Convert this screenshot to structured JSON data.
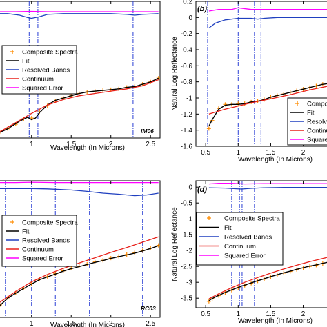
{
  "chart_data": [
    {
      "type": "line",
      "panel_label": "",
      "tag": "IM06",
      "xlabel": "Wavelength (In Microns)",
      "ylabel": "",
      "xlim": [
        0.55,
        2.62
      ],
      "ylim": [
        -1.5,
        0.28
      ],
      "xticks": [
        1,
        1.5,
        2,
        2.5
      ],
      "xtick_labels": [
        "1",
        "1.5",
        "2",
        "2.5"
      ],
      "yticks": [],
      "ytick_labels": [],
      "legend": {
        "position": "left-middle",
        "entries": [
          "Composite Spectra",
          "Fit",
          "Resolved Bands",
          "Continuum",
          "Squared Error"
        ]
      },
      "band_centers": [
        0.97,
        1.08,
        2.28
      ],
      "series": [
        {
          "name": "Composite Spectra",
          "color": "#ff8c00",
          "marker": "+",
          "x": [
            0.6,
            0.7,
            0.8,
            0.9,
            1.0,
            1.1,
            1.2,
            1.3,
            1.4,
            1.5,
            1.6,
            1.7,
            1.8,
            1.9,
            2.0,
            2.1,
            2.2,
            2.3,
            2.4,
            2.5,
            2.6
          ],
          "y": [
            -1.42,
            -1.38,
            -1.32,
            -1.25,
            -1.24,
            -1.16,
            -1.08,
            -1.02,
            -0.98,
            -0.95,
            -0.92,
            -0.9,
            -0.89,
            -0.88,
            -0.87,
            -0.86,
            -0.84,
            -0.83,
            -0.8,
            -0.77,
            -0.72
          ]
        },
        {
          "name": "Fit",
          "color": "#000000",
          "x": [
            0.55,
            0.7,
            0.85,
            0.95,
            1.0,
            1.05,
            1.1,
            1.2,
            1.3,
            1.4,
            1.5,
            1.6,
            1.7,
            1.8,
            1.9,
            2.0,
            2.1,
            2.2,
            2.3,
            2.4,
            2.5,
            2.6
          ],
          "y": [
            -1.45,
            -1.38,
            -1.28,
            -1.23,
            -1.26,
            -1.24,
            -1.17,
            -1.07,
            -1.01,
            -0.98,
            -0.95,
            -0.92,
            -0.9,
            -0.89,
            -0.88,
            -0.87,
            -0.86,
            -0.84,
            -0.83,
            -0.8,
            -0.77,
            -0.72
          ]
        },
        {
          "name": "Resolved Bands",
          "color": "#1f3fbf",
          "x": [
            0.55,
            0.7,
            0.85,
            0.95,
            1.0,
            1.1,
            1.2,
            1.4,
            1.6,
            1.8,
            2.0,
            2.2,
            2.3,
            2.4,
            2.6
          ],
          "y": [
            0.12,
            0.12,
            0.1,
            0.07,
            0.06,
            0.08,
            0.11,
            0.12,
            0.12,
            0.12,
            0.12,
            0.11,
            0.1,
            0.11,
            0.12
          ]
        },
        {
          "name": "Continuum",
          "color": "#e8201a",
          "x": [
            0.55,
            0.8,
            1.0,
            1.2,
            1.4,
            1.6,
            1.8,
            2.0,
            2.2,
            2.4,
            2.6
          ],
          "y": [
            -1.45,
            -1.3,
            -1.18,
            -1.07,
            -1.0,
            -0.95,
            -0.92,
            -0.89,
            -0.86,
            -0.82,
            -0.74
          ]
        },
        {
          "name": "Squared Error",
          "color": "#ff00ff",
          "x": [
            0.55,
            0.8,
            1.0,
            1.2,
            1.6,
            2.0,
            2.4,
            2.6
          ],
          "y": [
            0.145,
            0.145,
            0.15,
            0.145,
            0.145,
            0.145,
            0.145,
            0.145
          ]
        }
      ]
    },
    {
      "type": "line",
      "panel_label": "(b)",
      "tag": "",
      "xlabel": "Wavelength (In Microns)",
      "ylabel": "Natural Log Reflectance",
      "xlim": [
        0.35,
        2.45
      ],
      "ylim": [
        -1.6,
        0.2
      ],
      "xticks": [
        0.5,
        1,
        1.5,
        2
      ],
      "xtick_labels": [
        "0.5",
        "1",
        "1.5",
        "2"
      ],
      "yticks": [
        0.2,
        0,
        -0.2,
        -0.4,
        -0.6,
        -0.8,
        -1,
        -1.2,
        -1.4,
        -1.6
      ],
      "ytick_labels": [
        "0.2",
        "0",
        "-0.2",
        "-0.4",
        "-0.6",
        "-0.8",
        "-1",
        "-1.2",
        "-1.4",
        "-1.6"
      ],
      "legend": {
        "position": "bottom-right",
        "entries": [
          "Compo",
          "Fit",
          "Resolv",
          "Continu",
          "Square"
        ]
      },
      "band_centers": [
        0.53,
        1.0,
        1.25,
        1.35
      ],
      "series": [
        {
          "name": "Compo",
          "color": "#ff8c00",
          "marker": "+",
          "x": [
            0.55,
            0.6,
            0.7,
            0.8,
            0.9,
            1.0,
            1.1,
            1.2,
            1.3,
            1.4,
            1.5,
            1.6,
            1.7,
            1.8,
            1.9,
            2.0,
            2.1,
            2.2,
            2.3,
            2.4
          ],
          "y": [
            -1.38,
            -1.28,
            -1.13,
            -1.08,
            -1.08,
            -1.07,
            -1.07,
            -1.05,
            -1.04,
            -1.02,
            -0.99,
            -0.97,
            -0.95,
            -0.93,
            -0.91,
            -0.89,
            -0.87,
            -0.85,
            -0.83,
            -0.82
          ]
        },
        {
          "name": "Fit",
          "color": "#000000",
          "x": [
            0.55,
            0.6,
            0.7,
            0.8,
            0.9,
            1.0,
            1.1,
            1.2,
            1.3,
            1.4,
            1.5,
            1.6,
            1.7,
            1.8,
            1.9,
            2.0,
            2.1,
            2.2,
            2.3,
            2.4
          ],
          "y": [
            -1.35,
            -1.27,
            -1.14,
            -1.09,
            -1.08,
            -1.08,
            -1.07,
            -1.05,
            -1.04,
            -1.02,
            -0.99,
            -0.97,
            -0.95,
            -0.93,
            -0.91,
            -0.89,
            -0.87,
            -0.85,
            -0.83,
            -0.82
          ]
        },
        {
          "name": "Resolv",
          "color": "#1f3fbf",
          "x": [
            0.55,
            0.65,
            0.8,
            1.0,
            1.2,
            1.3,
            1.4,
            1.6,
            2.0,
            2.4
          ],
          "y": [
            -0.13,
            -0.07,
            -0.03,
            -0.01,
            -0.01,
            -0.02,
            -0.01,
            0.0,
            0.0,
            0.0
          ]
        },
        {
          "name": "Continu",
          "color": "#e8201a",
          "x": [
            0.55,
            0.8,
            1.0,
            1.2,
            1.5,
            1.8,
            2.1,
            2.4
          ],
          "y": [
            -1.2,
            -1.14,
            -1.1,
            -1.06,
            -1.01,
            -0.96,
            -0.9,
            -0.85
          ]
        },
        {
          "name": "Square",
          "color": "#ff00ff",
          "x": [
            0.55,
            0.7,
            0.9,
            1.0,
            1.2,
            1.5,
            1.8,
            2.1,
            2.4
          ],
          "y": [
            0.08,
            0.1,
            0.1,
            0.12,
            0.1,
            0.1,
            0.1,
            0.1,
            0.1
          ]
        }
      ]
    },
    {
      "type": "line",
      "panel_label": "",
      "tag": "RC03",
      "xlabel": "Wavelength (In Microns)",
      "ylabel": "",
      "xlim": [
        0.55,
        2.62
      ],
      "ylim": [
        -3.55,
        0.3
      ],
      "xticks": [
        1,
        1.5,
        2,
        2.5
      ],
      "xtick_labels": [
        "1",
        "1.5",
        "2",
        "2.5"
      ],
      "yticks": [],
      "ytick_labels": [],
      "legend": {
        "position": "left-middle",
        "entries": [
          "Composite Spectra",
          "Fit",
          "Resolved Bands",
          "Continuum",
          "Squared Error"
        ]
      },
      "band_centers": [
        0.67,
        1.0,
        1.3,
        1.73,
        2.4
      ],
      "series": [
        {
          "name": "Composite Spectra",
          "color": "#ff8c00",
          "marker": "+",
          "x": [
            0.6,
            0.7,
            0.8,
            0.9,
            1.0,
            1.1,
            1.2,
            1.3,
            1.4,
            1.5,
            1.6,
            1.7,
            1.8,
            1.9,
            2.0,
            2.1,
            2.2,
            2.3,
            2.4,
            2.5,
            2.6
          ],
          "y": [
            -3.2,
            -3.0,
            -2.86,
            -2.73,
            -2.6,
            -2.48,
            -2.4,
            -2.32,
            -2.24,
            -2.17,
            -2.11,
            -2.05,
            -1.99,
            -1.94,
            -1.88,
            -1.83,
            -1.78,
            -1.73,
            -1.67,
            -1.6,
            -1.52
          ]
        },
        {
          "name": "Fit",
          "color": "#000000",
          "x": [
            0.6,
            0.7,
            0.8,
            0.9,
            1.0,
            1.1,
            1.2,
            1.3,
            1.4,
            1.5,
            1.6,
            1.7,
            1.8,
            1.9,
            2.0,
            2.1,
            2.2,
            2.3,
            2.4,
            2.5,
            2.6
          ],
          "y": [
            -3.22,
            -3.01,
            -2.87,
            -2.74,
            -2.61,
            -2.49,
            -2.41,
            -2.33,
            -2.25,
            -2.18,
            -2.12,
            -2.06,
            -2.0,
            -1.95,
            -1.89,
            -1.84,
            -1.79,
            -1.74,
            -1.68,
            -1.61,
            -1.53
          ]
        },
        {
          "name": "Resolved Bands",
          "color": "#1f3fbf",
          "x": [
            0.55,
            0.8,
            1.0,
            1.2,
            1.5,
            1.7,
            1.9,
            2.1,
            2.3,
            2.45,
            2.6
          ],
          "y": [
            0.08,
            0.08,
            0.08,
            0.07,
            0.04,
            0.0,
            -0.05,
            -0.08,
            -0.12,
            -0.1,
            -0.05
          ]
        },
        {
          "name": "Continuum",
          "color": "#e8201a",
          "x": [
            0.55,
            0.8,
            1.0,
            1.2,
            1.4,
            1.6,
            1.8,
            2.0,
            2.2,
            2.4,
            2.6
          ],
          "y": [
            -3.2,
            -2.82,
            -2.55,
            -2.34,
            -2.17,
            -2.02,
            -1.87,
            -1.72,
            -1.58,
            -1.43,
            -1.28
          ]
        },
        {
          "name": "Squared Error",
          "color": "#ff00ff",
          "x": [
            0.55,
            0.8,
            1.0,
            1.3,
            1.6,
            2.0,
            2.4,
            2.6
          ],
          "y": [
            0.25,
            0.25,
            0.26,
            0.25,
            0.25,
            0.25,
            0.25,
            0.25
          ]
        }
      ]
    },
    {
      "type": "line",
      "panel_label": "(d)",
      "tag": "",
      "xlabel": "Wavelength (In Microns)",
      "ylabel": "Natural Log Reflectance",
      "xlim": [
        0.35,
        2.45
      ],
      "ylim": [
        -3.8,
        0.2
      ],
      "xticks": [
        0.5,
        1,
        1.5,
        2
      ],
      "xtick_labels": [
        "0.5",
        "1",
        "1.5",
        "2"
      ],
      "yticks": [
        0,
        -0.5,
        -1,
        -1.5,
        -2,
        -2.5,
        -3,
        -3.5
      ],
      "ytick_labels": [
        "0",
        "-0.5",
        "-1",
        "-1.5",
        "-2",
        "-2.5",
        "-3",
        "-3.5"
      ],
      "legend": {
        "position": "center",
        "entries": [
          "Composite Spectra",
          "Fit",
          "Resolved Bands",
          "Continuum",
          "Squared Error"
        ]
      },
      "band_centers": [
        0.9,
        1.02,
        1.06,
        1.25
      ],
      "series": [
        {
          "name": "Composite Spectra",
          "color": "#ff8c00",
          "marker": "+",
          "x": [
            0.55,
            0.6,
            0.7,
            0.8,
            0.9,
            1.0,
            1.1,
            1.2,
            1.3,
            1.4,
            1.5,
            1.6,
            1.7,
            1.8,
            1.9,
            2.0,
            2.1,
            2.2,
            2.3,
            2.4
          ],
          "y": [
            -3.6,
            -3.52,
            -3.42,
            -3.33,
            -3.25,
            -3.17,
            -3.1,
            -3.03,
            -2.96,
            -2.9,
            -2.83,
            -2.77,
            -2.71,
            -2.66,
            -2.6,
            -2.55,
            -2.5,
            -2.46,
            -2.41,
            -2.37
          ]
        },
        {
          "name": "Fit",
          "color": "#000000",
          "x": [
            0.55,
            0.6,
            0.7,
            0.8,
            0.9,
            1.0,
            1.1,
            1.2,
            1.3,
            1.4,
            1.5,
            1.6,
            1.7,
            1.8,
            1.9,
            2.0,
            2.1,
            2.2,
            2.3,
            2.4
          ],
          "y": [
            -3.58,
            -3.51,
            -3.41,
            -3.32,
            -3.24,
            -3.16,
            -3.09,
            -3.02,
            -2.95,
            -2.89,
            -2.82,
            -2.76,
            -2.7,
            -2.65,
            -2.59,
            -2.54,
            -2.49,
            -2.45,
            -2.4,
            -2.36
          ]
        },
        {
          "name": "Resolved Bands",
          "color": "#1f3fbf",
          "x": [
            0.55,
            0.8,
            0.95,
            1.05,
            1.2,
            1.4,
            1.7,
            2.0,
            2.4
          ],
          "y": [
            -0.02,
            -0.03,
            -0.05,
            -0.06,
            -0.04,
            -0.02,
            -0.01,
            -0.01,
            -0.01
          ]
        },
        {
          "name": "Continuum",
          "color": "#e8201a",
          "x": [
            0.55,
            0.7,
            0.9,
            1.1,
            1.3,
            1.5,
            1.7,
            1.9,
            2.1,
            2.4
          ],
          "y": [
            -3.52,
            -3.36,
            -3.17,
            -3.0,
            -2.85,
            -2.71,
            -2.58,
            -2.46,
            -2.35,
            -2.2
          ]
        },
        {
          "name": "Squared Error",
          "color": "#ff00ff",
          "x": [
            0.55,
            0.7,
            0.9,
            1.1,
            1.4,
            1.7,
            2.0,
            2.4
          ],
          "y": [
            0.1,
            0.12,
            0.12,
            0.1,
            0.11,
            0.11,
            0.11,
            0.11
          ]
        }
      ]
    }
  ]
}
